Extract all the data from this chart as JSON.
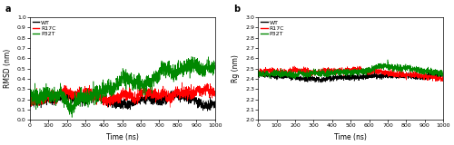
{
  "n_points": 2000,
  "time_max": 1000,
  "panel_a": {
    "ylabel": "RMSD (nm)",
    "ylim": [
      0,
      1.0
    ],
    "yticks": [
      0,
      0.1,
      0.2,
      0.3,
      0.4,
      0.5,
      0.6,
      0.7,
      0.8,
      0.9,
      1.0
    ],
    "wt_start": 0.16,
    "wt_mean": 0.23,
    "wt_noise": 0.022,
    "r17c_start": 0.2,
    "r17c_mean": 0.3,
    "r17c_noise": 0.028,
    "p32t_start": 0.24,
    "p32t_mean": 0.37,
    "p32t_noise": 0.038
  },
  "panel_b": {
    "ylabel": "Rg (nm)",
    "ylim": [
      2.0,
      3.0
    ],
    "yticks": [
      2.0,
      2.1,
      2.2,
      2.3,
      2.4,
      2.5,
      2.6,
      2.7,
      2.8,
      2.9,
      3.0
    ],
    "wt_mean": 2.42,
    "wt_noise": 0.013,
    "r17c_mean": 2.46,
    "r17c_noise": 0.015,
    "p32t_mean": 2.47,
    "p32t_noise": 0.016
  },
  "xlabel": "Time (ns)",
  "xticks": [
    0,
    100,
    200,
    300,
    400,
    500,
    600,
    700,
    800,
    900,
    1000
  ],
  "colors": {
    "wt": "#000000",
    "r17c": "#ff0000",
    "p32t": "#008800"
  },
  "legend_labels": [
    "WT",
    "R17C",
    "P32T"
  ],
  "linewidth": 0.4,
  "label_a": "a",
  "label_b": "b",
  "background_color": "#ffffff",
  "tick_fontsize": 4.5,
  "label_fontsize": 5.5,
  "legend_fontsize": 4.5
}
